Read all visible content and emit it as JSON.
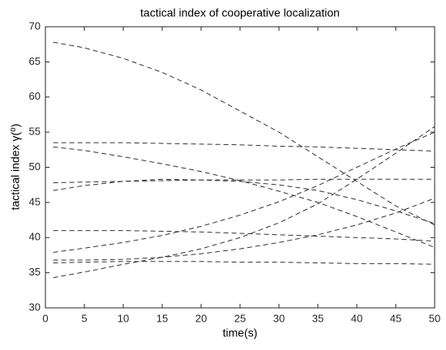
{
  "chart_data": {
    "type": "line",
    "title": "tactical index of cooperative localization",
    "x_label": "time(s)",
    "y_label": "tactical index γ(⁰)",
    "x": [
      1,
      5,
      10,
      15,
      20,
      25,
      30,
      35,
      40,
      45,
      50
    ],
    "color": "#333333",
    "dashed": true,
    "series": [
      {
        "values": [
          67.8,
          67.0,
          65.5,
          63.5,
          61.0,
          58.0,
          55.0,
          51.5,
          48.0,
          44.5,
          41.8
        ]
      },
      {
        "values": [
          53.5,
          53.5,
          53.5,
          53.4,
          53.3,
          53.2,
          53.0,
          52.9,
          52.7,
          52.5,
          52.3
        ]
      },
      {
        "values": [
          52.9,
          52.4,
          51.5,
          50.5,
          49.4,
          48.1,
          46.6,
          45.0,
          43.0,
          40.8,
          38.6
        ]
      },
      {
        "values": [
          47.8,
          47.9,
          48.0,
          48.1,
          48.2,
          48.2,
          48.2,
          48.3,
          48.3,
          48.3,
          48.3
        ]
      },
      {
        "values": [
          46.7,
          47.4,
          48.0,
          48.3,
          48.2,
          48.0,
          47.5,
          46.7,
          45.4,
          43.8,
          42.0
        ]
      },
      {
        "values": [
          41.0,
          41.0,
          41.0,
          40.9,
          40.8,
          40.6,
          40.4,
          40.2,
          40.0,
          39.8,
          39.5
        ]
      },
      {
        "values": [
          37.9,
          38.5,
          39.3,
          40.3,
          41.6,
          43.2,
          45.1,
          47.4,
          50.0,
          52.6,
          55.0
        ]
      },
      {
        "values": [
          36.8,
          36.8,
          36.9,
          37.2,
          37.7,
          38.4,
          39.3,
          40.4,
          41.8,
          43.5,
          45.6
        ]
      },
      {
        "values": [
          36.4,
          36.5,
          36.6,
          36.6,
          36.6,
          36.5,
          36.5,
          36.4,
          36.3,
          36.3,
          36.2
        ]
      },
      {
        "values": [
          34.3,
          35.1,
          36.2,
          37.2,
          38.4,
          40.0,
          42.1,
          44.8,
          48.3,
          52.0,
          55.8
        ]
      }
    ],
    "xlim": [
      0,
      50
    ],
    "xticks": [
      0,
      5,
      10,
      15,
      20,
      25,
      30,
      35,
      40,
      45,
      50
    ],
    "ylim": [
      30,
      70
    ],
    "yticks": [
      30,
      35,
      40,
      45,
      50,
      55,
      60,
      65,
      70
    ],
    "grid": false
  }
}
